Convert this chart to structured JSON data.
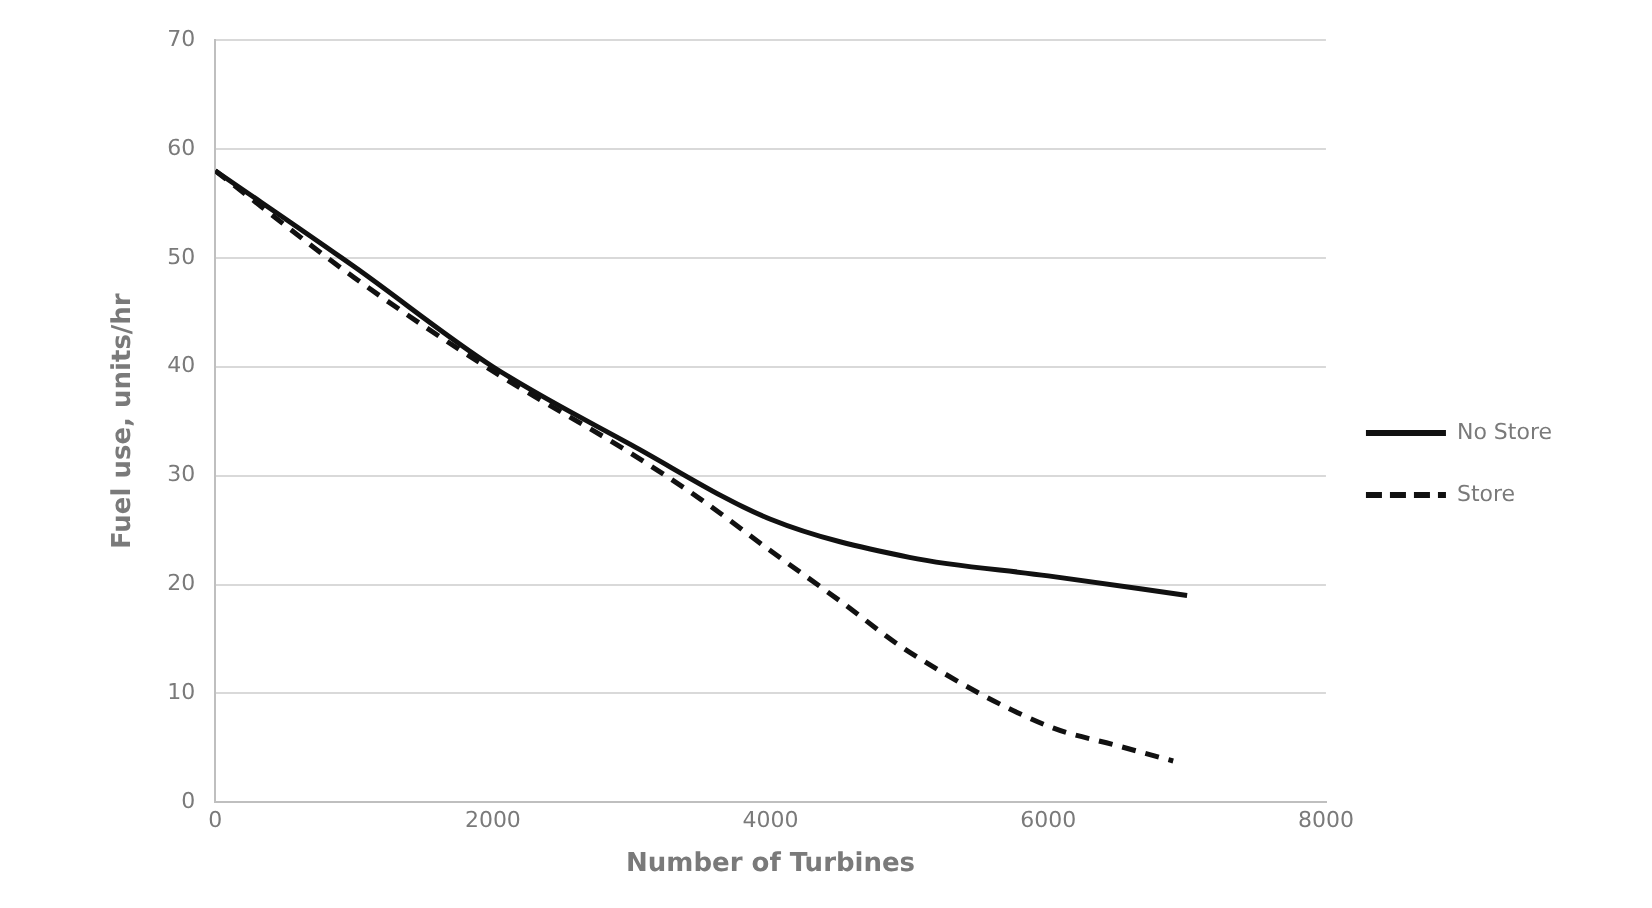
{
  "chart_data": {
    "type": "line",
    "xlabel": "Number of Turbines",
    "ylabel": "Fuel use, units/hr",
    "xlim": [
      0,
      8000
    ],
    "xticks": [
      0,
      2000,
      4000,
      6000,
      8000
    ],
    "ylim": [
      0,
      70
    ],
    "yticks": [
      0,
      10,
      20,
      30,
      40,
      50,
      60,
      70
    ],
    "grid": "y",
    "legend": "right",
    "marker": "none",
    "series": [
      {
        "name": "No Store",
        "color": "#111111",
        "line_style": "solid",
        "x": [
          0,
          1000,
          2000,
          3000,
          4000,
          5000,
          6000,
          7000
        ],
        "values": [
          58,
          49.2,
          40,
          32.8,
          26,
          22.5,
          20.8,
          19
        ]
      },
      {
        "name": "Store",
        "color": "#111111",
        "line_style": "dashed",
        "x": [
          0,
          1000,
          2000,
          3000,
          3500,
          4000,
          4500,
          5000,
          6000,
          6500,
          6900
        ],
        "values": [
          58,
          48.2,
          39.6,
          32,
          27.8,
          23.1,
          18.5,
          13.8,
          7,
          5.2,
          3.8
        ]
      }
    ]
  }
}
